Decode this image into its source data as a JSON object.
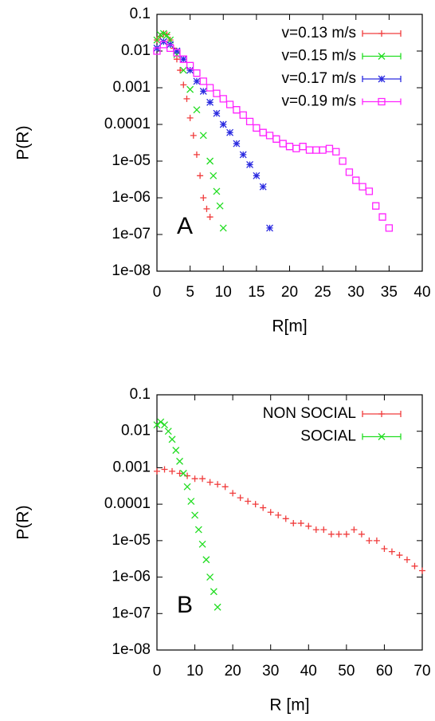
{
  "chart_data": [
    {
      "type": "scatter",
      "annotation": "A",
      "xlabel": "R[m]",
      "ylabel": "P(R)",
      "log_y": true,
      "legend": "top-right",
      "xlim": [
        0,
        40
      ],
      "xticks": [
        0,
        5,
        10,
        15,
        20,
        25,
        30,
        35,
        40
      ],
      "ylim": [
        1e-08,
        0.1
      ],
      "yticks": [
        0.1,
        0.01,
        0.001,
        0.0001,
        {
          "value": 1e-05,
          "label": "1e-05"
        },
        {
          "value": 1e-06,
          "label": "1e-06"
        },
        {
          "value": 1e-07,
          "label": "1e-07"
        },
        {
          "value": 1e-08,
          "label": "1e-08"
        }
      ],
      "series": [
        {
          "name": "v=0.13 m/s",
          "color": "#f03c3c",
          "marker": "plus",
          "x": [
            0,
            0.5,
            1,
            1.5,
            2,
            2.5,
            3,
            3.5,
            4,
            4.5,
            5,
            5.5,
            6,
            6.5,
            7,
            7.5,
            8
          ],
          "values": [
            0.02,
            0.025,
            0.03,
            0.028,
            0.02,
            0.012,
            0.006,
            0.003,
            0.0012,
            0.0005,
            0.00015,
            5e-05,
            1.5e-05,
            4e-06,
            1e-06,
            5e-07,
            3e-07
          ]
        },
        {
          "name": "v=0.15 m/s",
          "color": "#22dd22",
          "marker": "cross",
          "x": [
            0,
            0.5,
            1,
            1.5,
            2,
            3,
            4,
            5,
            6,
            7,
            8,
            8.5,
            9,
            9.5,
            10
          ],
          "values": [
            0.02,
            0.028,
            0.03,
            0.027,
            0.02,
            0.008,
            0.003,
            0.0009,
            0.00025,
            5e-05,
            1e-05,
            4e-06,
            1.5e-06,
            6e-07,
            1.5e-07
          ]
        },
        {
          "name": "v=0.17 m/s",
          "color": "#2a2ae0",
          "marker": "star",
          "x": [
            0,
            1,
            2,
            3,
            4,
            5,
            6,
            7,
            8,
            9,
            10,
            11,
            12,
            13,
            14,
            15,
            16,
            17
          ],
          "values": [
            0.012,
            0.018,
            0.015,
            0.01,
            0.006,
            0.003,
            0.0015,
            0.0008,
            0.0004,
            0.0002,
            0.0001,
            6e-05,
            3e-05,
            1.5e-05,
            8e-06,
            4e-06,
            2e-06,
            1.5e-07
          ]
        },
        {
          "name": "v=0.19 m/s",
          "color": "#ff22ff",
          "marker": "square",
          "x": [
            0,
            1,
            2,
            3,
            4,
            5,
            6,
            7,
            8,
            9,
            10,
            11,
            12,
            13,
            14,
            15,
            16,
            17,
            18,
            19,
            20,
            21,
            22,
            23,
            24,
            25,
            26,
            27,
            28,
            29,
            30,
            31,
            32,
            33,
            34,
            35
          ],
          "values": [
            0.01,
            0.015,
            0.012,
            0.009,
            0.006,
            0.004,
            0.0025,
            0.0015,
            0.001,
            0.0007,
            0.0005,
            0.00035,
            0.00025,
            0.00018,
            0.00012,
            8e-05,
            6e-05,
            5e-05,
            4e-05,
            3e-05,
            2.5e-05,
            2.2e-05,
            2.5e-05,
            2e-05,
            2e-05,
            2e-05,
            2.2e-05,
            1.8e-05,
            1e-05,
            5e-06,
            3e-06,
            2e-06,
            1.5e-06,
            6e-07,
            3e-07,
            1.5e-07
          ]
        }
      ]
    },
    {
      "type": "scatter",
      "annotation": "B",
      "xlabel": "R [m]",
      "ylabel": "P(R)",
      "log_y": true,
      "legend": "top-right",
      "xlim": [
        0,
        70
      ],
      "xticks": [
        0,
        10,
        20,
        30,
        40,
        50,
        60,
        70
      ],
      "ylim": [
        1e-08,
        0.1
      ],
      "yticks": [
        0.1,
        0.01,
        0.001,
        0.0001,
        {
          "value": 1e-05,
          "label": "1e-05"
        },
        {
          "value": 1e-06,
          "label": "1e-06"
        },
        {
          "value": 1e-07,
          "label": "1e-07"
        },
        {
          "value": 1e-08,
          "label": "1e-08"
        }
      ],
      "series": [
        {
          "name": "NON SOCIAL",
          "color": "#f03c3c",
          "marker": "plus",
          "x": [
            0,
            2,
            4,
            6,
            8,
            10,
            12,
            14,
            16,
            18,
            20,
            22,
            24,
            26,
            28,
            30,
            32,
            34,
            36,
            38,
            40,
            42,
            44,
            46,
            48,
            50,
            52,
            54,
            56,
            58,
            60,
            62,
            64,
            66,
            68,
            70
          ],
          "values": [
            0.0008,
            0.0009,
            0.0008,
            0.0007,
            0.0006,
            0.0005,
            0.0005,
            0.0004,
            0.00035,
            0.0003,
            0.0002,
            0.00015,
            0.00012,
            0.0001,
            8e-05,
            6e-05,
            5e-05,
            4e-05,
            3e-05,
            3e-05,
            2.5e-05,
            2e-05,
            2e-05,
            1.5e-05,
            1.5e-05,
            1.5e-05,
            2e-05,
            1.5e-05,
            1e-05,
            1e-05,
            6e-06,
            5e-06,
            4e-06,
            3e-06,
            2e-06,
            1.5e-06
          ]
        },
        {
          "name": "SOCIAL",
          "color": "#22dd22",
          "marker": "cross",
          "x": [
            0,
            1,
            2,
            3,
            4,
            5,
            6,
            7,
            8,
            9,
            10,
            11,
            12,
            13,
            14,
            15,
            16
          ],
          "values": [
            0.015,
            0.018,
            0.015,
            0.01,
            0.006,
            0.003,
            0.0015,
            0.0007,
            0.0003,
            0.00012,
            5e-05,
            2e-05,
            8e-06,
            3e-06,
            1e-06,
            4e-07,
            1.5e-07
          ]
        }
      ]
    }
  ]
}
